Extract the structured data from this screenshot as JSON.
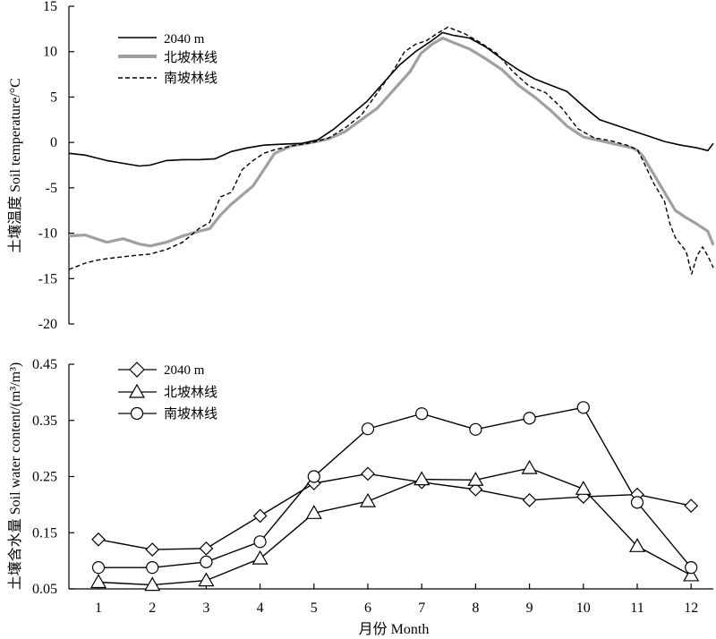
{
  "chart_data": [
    {
      "type": "line",
      "ylabel": "土壤温度 Soil temperature/°C",
      "ylim": [
        -20,
        15
      ],
      "yticks": [
        -20,
        -15,
        -10,
        -5,
        0,
        5,
        10,
        15
      ],
      "xlim": [
        0.5,
        12.4
      ],
      "grid": false,
      "legend_position": "top-left",
      "series": [
        {
          "name": "2040 m",
          "color": "#000000",
          "style": "solid-thin",
          "x": [
            0.5,
            0.8,
            1.0,
            1.2,
            1.5,
            1.8,
            2.0,
            2.3,
            2.6,
            2.9,
            3.2,
            3.5,
            3.8,
            4.1,
            4.4,
            4.8,
            5.1,
            5.4,
            5.7,
            6.0,
            6.3,
            6.6,
            6.9,
            7.2,
            7.4,
            7.6,
            7.9,
            8.2,
            8.5,
            8.8,
            9.1,
            9.4,
            9.7,
            10.0,
            10.3,
            10.6,
            10.9,
            11.2,
            11.5,
            11.8,
            12.1,
            12.3,
            12.4
          ],
          "y": [
            -1.2,
            -1.4,
            -1.7,
            -2.0,
            -2.3,
            -2.6,
            -2.5,
            -2.0,
            -1.9,
            -1.9,
            -1.8,
            -1.0,
            -0.6,
            -0.3,
            -0.2,
            -0.1,
            0.3,
            1.5,
            3.0,
            4.5,
            6.5,
            8.5,
            10.0,
            11.2,
            12.1,
            11.8,
            11.5,
            10.5,
            9.2,
            8.0,
            7.0,
            6.3,
            5.6,
            4.0,
            2.5,
            1.9,
            1.3,
            0.7,
            0.1,
            -0.3,
            -0.6,
            -0.9,
            -0.1
          ]
        },
        {
          "name": "北坡林线",
          "color": "#a0a0a0",
          "style": "solid-thick",
          "x": [
            0.5,
            0.8,
            1.0,
            1.2,
            1.5,
            1.8,
            2.0,
            2.3,
            2.6,
            2.9,
            3.1,
            3.3,
            3.5,
            3.7,
            3.9,
            4.1,
            4.3,
            4.6,
            5.0,
            5.3,
            5.6,
            5.9,
            6.2,
            6.5,
            6.8,
            7.0,
            7.2,
            7.4,
            7.6,
            7.9,
            8.2,
            8.5,
            8.8,
            9.1,
            9.4,
            9.7,
            10.0,
            10.3,
            10.6,
            10.9,
            11.0,
            11.1,
            11.3,
            11.5,
            11.7,
            11.9,
            12.1,
            12.3,
            12.4
          ],
          "y": [
            -10.3,
            -10.2,
            -10.6,
            -11.0,
            -10.6,
            -11.2,
            -11.4,
            -11.0,
            -10.3,
            -9.8,
            -9.5,
            -8.0,
            -6.8,
            -5.8,
            -4.8,
            -3.0,
            -1.2,
            -0.4,
            0.0,
            0.4,
            1.2,
            2.5,
            3.8,
            5.8,
            7.8,
            9.8,
            10.8,
            11.5,
            11.0,
            10.3,
            9.2,
            8.0,
            6.3,
            5.0,
            3.5,
            1.8,
            0.6,
            0.2,
            -0.2,
            -0.6,
            -0.9,
            -1.5,
            -3.5,
            -5.5,
            -7.5,
            -8.3,
            -9.0,
            -9.8,
            -11.3
          ]
        },
        {
          "name": "南坡林线",
          "color": "#000000",
          "style": "dashed",
          "x": [
            0.5,
            0.8,
            1.0,
            1.2,
            1.5,
            1.8,
            2.0,
            2.3,
            2.6,
            2.9,
            3.1,
            3.3,
            3.5,
            3.7,
            3.9,
            4.1,
            4.3,
            4.6,
            5.0,
            5.3,
            5.6,
            5.9,
            6.2,
            6.5,
            6.7,
            6.9,
            7.1,
            7.3,
            7.5,
            7.8,
            8.1,
            8.4,
            8.7,
            9.0,
            9.3,
            9.6,
            9.9,
            10.2,
            10.5,
            10.8,
            11.0,
            11.1,
            11.3,
            11.5,
            11.6,
            11.7,
            11.9,
            12.0,
            12.1,
            12.2,
            12.3,
            12.4
          ],
          "y": [
            -14.0,
            -13.3,
            -13.0,
            -12.8,
            -12.6,
            -12.4,
            -12.3,
            -11.8,
            -11.0,
            -9.5,
            -8.8,
            -6.0,
            -5.5,
            -3.0,
            -2.0,
            -1.2,
            -0.8,
            -0.4,
            0.0,
            0.5,
            1.6,
            3.0,
            5.5,
            8.0,
            10.0,
            10.8,
            11.2,
            12.0,
            12.7,
            12.0,
            11.0,
            9.8,
            7.8,
            6.2,
            5.5,
            3.8,
            1.5,
            0.5,
            0.2,
            -0.3,
            -0.8,
            -2.0,
            -4.5,
            -6.5,
            -9.0,
            -10.5,
            -12.0,
            -14.5,
            -12.5,
            -11.5,
            -12.5,
            -13.8
          ]
        }
      ]
    },
    {
      "type": "line",
      "xlabel": "月份 Month",
      "ylabel": "土壤含水量 Soil water content/(m³/m³)",
      "categories": [
        "1",
        "2",
        "3",
        "4",
        "5",
        "6",
        "7",
        "8",
        "9",
        "10",
        "11",
        "12"
      ],
      "ylim": [
        0.05,
        0.45
      ],
      "yticks": [
        0.05,
        0.15,
        0.25,
        0.35,
        0.45
      ],
      "ytick_labels": [
        "0.05",
        "0.15",
        "0.25",
        "0.35",
        "0.45"
      ],
      "grid": false,
      "legend_position": "top-left",
      "series": [
        {
          "name": "2040 m",
          "marker": "diamond",
          "values": [
            0.138,
            0.12,
            0.122,
            0.18,
            0.238,
            0.255,
            0.24,
            0.227,
            0.208,
            0.214,
            0.218,
            0.198
          ]
        },
        {
          "name": "北坡林线",
          "marker": "triangle",
          "values": [
            0.062,
            0.057,
            0.065,
            0.104,
            0.185,
            0.206,
            0.245,
            0.244,
            0.265,
            0.228,
            0.126,
            0.074
          ]
        },
        {
          "name": "南坡林线",
          "marker": "circle",
          "values": [
            0.088,
            0.088,
            0.098,
            0.134,
            0.25,
            0.335,
            0.362,
            0.334,
            0.354,
            0.373,
            0.204,
            0.088
          ]
        }
      ]
    }
  ]
}
